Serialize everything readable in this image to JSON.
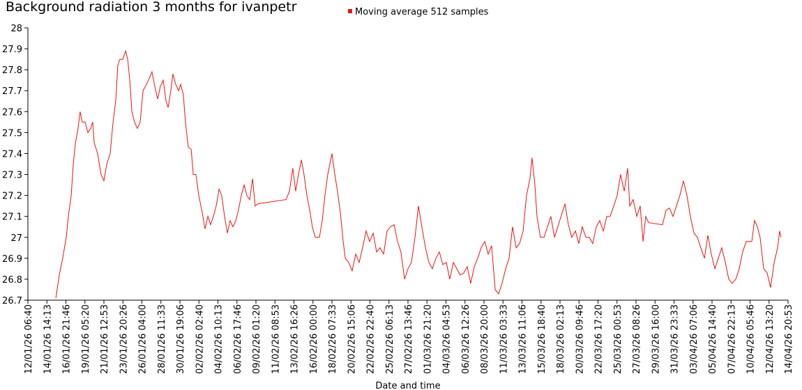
{
  "chart_data": {
    "type": "line",
    "title": "Background radiation 3 months for ivanpetr",
    "x_label": "Date and time",
    "series": [
      {
        "name": "Moving average 512 samples",
        "color": "#ee1111",
        "x": [
          1.47,
          1.65,
          1.83,
          2.02,
          2.13,
          2.28,
          2.39,
          2.5,
          2.64,
          2.75,
          2.86,
          3.01,
          3.16,
          3.3,
          3.41,
          3.49,
          3.67,
          3.85,
          4.0,
          4.15,
          4.33,
          4.48,
          4.62,
          4.73,
          4.84,
          4.99,
          5.14,
          5.25,
          5.36,
          5.47,
          5.61,
          5.76,
          5.91,
          6.06,
          6.24,
          6.39,
          6.53,
          6.68,
          6.83,
          6.97,
          7.12,
          7.27,
          7.38,
          7.52,
          7.63,
          7.78,
          7.93,
          8.04,
          8.18,
          8.29,
          8.44,
          8.59,
          8.7,
          8.84,
          8.99,
          9.17,
          9.32,
          9.47,
          9.61,
          9.76,
          9.91,
          10.06,
          10.2,
          10.35,
          10.5,
          10.64,
          10.79,
          10.94,
          11.08,
          11.23,
          11.38,
          11.52,
          11.67,
          11.82,
          11.96,
          12.11,
          13.58,
          13.76,
          13.94,
          14.09,
          14.24,
          14.39,
          14.53,
          14.68,
          14.83,
          14.97,
          15.12,
          15.34,
          15.49,
          15.63,
          15.78,
          16.0,
          16.15,
          16.29,
          16.44,
          16.59,
          16.7,
          16.88,
          17.06,
          17.25,
          17.43,
          17.61,
          17.8,
          17.98,
          18.17,
          18.35,
          18.53,
          18.72,
          18.9,
          19.08,
          19.27,
          19.45,
          19.63,
          19.82,
          20.0,
          20.18,
          20.37,
          20.55,
          20.73,
          20.92,
          21.1,
          21.28,
          21.47,
          21.65,
          21.83,
          22.02,
          22.2,
          22.39,
          22.57,
          22.75,
          22.94,
          23.12,
          23.3,
          23.49,
          23.67,
          23.85,
          24.04,
          24.22,
          24.4,
          24.59,
          24.77,
          24.95,
          25.14,
          25.32,
          25.5,
          25.69,
          25.87,
          26.06,
          26.24,
          26.42,
          26.53,
          26.68,
          26.79,
          26.97,
          27.16,
          27.34,
          27.52,
          27.71,
          28.26,
          28.44,
          28.62,
          28.81,
          28.99,
          29.17,
          29.36,
          29.54,
          29.72,
          29.91,
          30.09,
          30.28,
          30.46,
          30.64,
          30.83,
          31.01,
          31.19,
          31.38,
          31.56,
          31.67,
          31.85,
          32.04,
          32.22,
          32.37,
          32.51,
          32.66,
          33.39,
          33.58,
          33.76,
          33.94,
          34.13,
          34.31,
          34.5,
          34.68,
          34.86,
          35.05,
          35.23,
          35.41,
          35.6,
          35.78,
          35.96,
          36.15,
          36.33,
          36.51,
          36.7,
          36.88,
          37.06,
          37.25,
          37.43,
          37.61,
          37.8,
          38.09,
          38.24,
          38.39,
          38.53,
          38.72,
          38.9,
          39.08,
          39.27,
          39.45,
          39.56,
          39.63
        ],
        "values": [
          26.71,
          26.82,
          26.9,
          27.0,
          27.1,
          27.2,
          27.35,
          27.45,
          27.52,
          27.6,
          27.55,
          27.55,
          27.5,
          27.52,
          27.55,
          27.45,
          27.4,
          27.3,
          27.27,
          27.35,
          27.4,
          27.55,
          27.65,
          27.82,
          27.85,
          27.85,
          27.89,
          27.85,
          27.75,
          27.6,
          27.55,
          27.52,
          27.55,
          27.7,
          27.73,
          27.76,
          27.79,
          27.72,
          27.66,
          27.72,
          27.75,
          27.65,
          27.62,
          27.7,
          27.78,
          27.73,
          27.7,
          27.73,
          27.68,
          27.55,
          27.43,
          27.42,
          27.3,
          27.3,
          27.2,
          27.12,
          27.04,
          27.1,
          27.06,
          27.1,
          27.15,
          27.23,
          27.2,
          27.1,
          27.02,
          27.08,
          27.05,
          27.08,
          27.13,
          27.2,
          27.25,
          27.2,
          27.18,
          27.28,
          27.15,
          27.16,
          27.18,
          27.22,
          27.33,
          27.22,
          27.3,
          27.37,
          27.3,
          27.2,
          27.13,
          27.05,
          27.0,
          27.0,
          27.08,
          27.2,
          27.3,
          27.4,
          27.3,
          27.22,
          27.12,
          26.98,
          26.9,
          26.88,
          26.84,
          26.92,
          26.88,
          26.95,
          27.03,
          26.98,
          27.02,
          26.93,
          26.95,
          26.92,
          27.03,
          27.05,
          27.06,
          26.98,
          26.93,
          26.8,
          26.85,
          26.88,
          27.0,
          27.15,
          27.05,
          26.95,
          26.88,
          26.85,
          26.9,
          26.93,
          26.87,
          26.88,
          26.8,
          26.88,
          26.85,
          26.82,
          26.83,
          26.86,
          26.78,
          26.86,
          26.9,
          26.95,
          26.98,
          26.92,
          26.96,
          26.75,
          26.73,
          26.78,
          26.85,
          26.9,
          27.05,
          26.95,
          26.97,
          27.03,
          27.2,
          27.28,
          27.38,
          27.25,
          27.1,
          27.0,
          27.0,
          27.05,
          27.1,
          27.0,
          27.16,
          27.06,
          27.0,
          27.03,
          26.97,
          27.05,
          27.0,
          27.0,
          26.97,
          27.05,
          27.08,
          27.03,
          27.1,
          27.1,
          27.15,
          27.2,
          27.3,
          27.22,
          27.33,
          27.15,
          27.18,
          27.1,
          27.15,
          26.98,
          27.1,
          27.07,
          27.06,
          27.13,
          27.14,
          27.1,
          27.15,
          27.2,
          27.27,
          27.2,
          27.1,
          27.02,
          27.0,
          26.95,
          26.9,
          27.01,
          26.92,
          26.85,
          26.9,
          26.95,
          26.88,
          26.8,
          26.78,
          26.8,
          26.85,
          26.93,
          26.98,
          26.98,
          27.08,
          27.05,
          27.0,
          26.85,
          26.83,
          26.76,
          26.88,
          26.95,
          27.03,
          27.0
        ]
      }
    ],
    "xlim": [
      0,
      40
    ],
    "xticks": [
      {
        "value": 0,
        "label": "12/01/26 06:40"
      },
      {
        "value": 1,
        "label": "14/01/26 14:13"
      },
      {
        "value": 2,
        "label": "16/01/26 21:46"
      },
      {
        "value": 3,
        "label": "19/01/26 05:20"
      },
      {
        "value": 4,
        "label": "21/01/26 12:53"
      },
      {
        "value": 5,
        "label": "23/01/26 20:26"
      },
      {
        "value": 6,
        "label": "26/01/26 04:00"
      },
      {
        "value": 7,
        "label": "28/01/26 11:33"
      },
      {
        "value": 8,
        "label": "30/01/26 19:06"
      },
      {
        "value": 9,
        "label": "02/02/26 02:40"
      },
      {
        "value": 10,
        "label": "04/02/26 10:13"
      },
      {
        "value": 11,
        "label": "06/02/26 17:46"
      },
      {
        "value": 12,
        "label": "09/02/26 01:20"
      },
      {
        "value": 13,
        "label": "11/02/26 08:53"
      },
      {
        "value": 14,
        "label": "13/02/26 16:26"
      },
      {
        "value": 15,
        "label": "16/02/26 00:00"
      },
      {
        "value": 16,
        "label": "18/02/26 07:33"
      },
      {
        "value": 17,
        "label": "20/02/26 15:06"
      },
      {
        "value": 18,
        "label": "22/02/26 22:40"
      },
      {
        "value": 19,
        "label": "25/02/26 06:13"
      },
      {
        "value": 20,
        "label": "27/02/26 13:46"
      },
      {
        "value": 21,
        "label": "01/03/26 21:20"
      },
      {
        "value": 22,
        "label": "04/03/26 04:53"
      },
      {
        "value": 23,
        "label": "06/03/26 12:26"
      },
      {
        "value": 24,
        "label": "08/03/26 20:00"
      },
      {
        "value": 25,
        "label": "11/03/26 03:33"
      },
      {
        "value": 26,
        "label": "13/03/26 11:06"
      },
      {
        "value": 27,
        "label": "15/03/26 18:40"
      },
      {
        "value": 28,
        "label": "18/03/26 02:13"
      },
      {
        "value": 29,
        "label": "20/03/26 09:46"
      },
      {
        "value": 30,
        "label": "22/03/26 17:20"
      },
      {
        "value": 31,
        "label": "25/03/26 00:53"
      },
      {
        "value": 32,
        "label": "27/03/26 08:26"
      },
      {
        "value": 33,
        "label": "29/03/26 16:00"
      },
      {
        "value": 34,
        "label": "31/03/26 23:33"
      },
      {
        "value": 35,
        "label": "03/04/26 07:06"
      },
      {
        "value": 36,
        "label": "05/04/26 14:40"
      },
      {
        "value": 37,
        "label": "07/04/26 22:13"
      },
      {
        "value": 38,
        "label": "10/04/26 05:46"
      },
      {
        "value": 39,
        "label": "12/04/26 13:20"
      },
      {
        "value": 40,
        "label": "14/04/26 20:53"
      }
    ],
    "ylim": [
      26.7,
      28
    ],
    "yticks": [
      26.7,
      26.8,
      26.9,
      27,
      27.1,
      27.2,
      27.3,
      27.4,
      27.5,
      27.6,
      27.7,
      27.8,
      27.9,
      28
    ],
    "grid": false
  }
}
